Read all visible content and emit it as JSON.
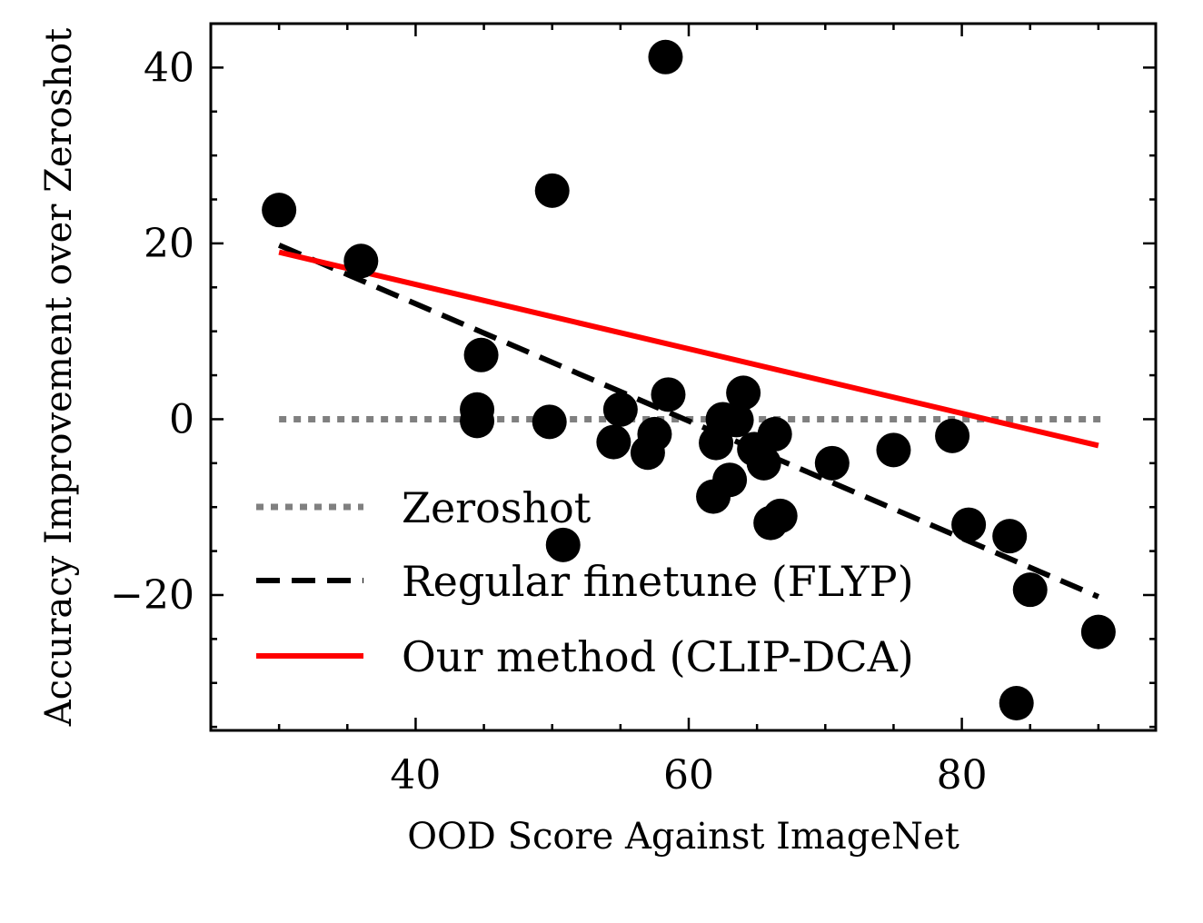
{
  "chart_data": {
    "type": "scatter",
    "xlabel": "OOD Score Against ImageNet",
    "ylabel": "Accuracy Improvement over Zeroshot",
    "xlim": [
      25.0,
      94.2
    ],
    "ylim": [
      -35.4,
      45.0
    ],
    "xticks": [
      40,
      60,
      80
    ],
    "xtick_labels": [
      "40",
      "60",
      "80"
    ],
    "yticks": [
      -20,
      0,
      20,
      40
    ],
    "ytick_labels": [
      "−20",
      "0",
      "20",
      "40"
    ],
    "x_minor_step": 5,
    "y_minor_step": 5,
    "grid": false,
    "legend_position": "lower-left",
    "colors": {
      "points": "#000000",
      "zeroshot": "#808080",
      "regular": "#000000",
      "ours": "#ff0000"
    },
    "points": {
      "x": [
        30.0,
        36.0,
        44.8,
        44.5,
        44.5,
        50.0,
        49.8,
        50.8,
        54.5,
        55.0,
        57.0,
        57.5,
        58.3,
        58.5,
        61.8,
        62.0,
        62.5,
        63.0,
        63.5,
        64.0,
        64.8,
        65.5,
        66.0,
        66.3,
        66.7,
        70.5,
        75.0,
        79.3,
        80.5,
        83.5,
        84.0,
        85.0,
        90.0
      ],
      "y": [
        23.8,
        18.0,
        7.3,
        1.1,
        -0.2,
        26.0,
        -0.3,
        -14.3,
        -2.6,
        1.1,
        -3.8,
        -1.7,
        41.2,
        2.8,
        -8.8,
        -2.7,
        0.0,
        -6.9,
        -0.1,
        3.0,
        -3.4,
        -5.0,
        -11.8,
        -1.7,
        -11.0,
        -5.0,
        -3.5,
        -1.9,
        -12.0,
        -13.3,
        -32.3,
        -19.4,
        -24.2
      ]
    },
    "series": [
      {
        "name": "Zeroshot",
        "style": "dotted",
        "x": [
          30.0,
          90.5
        ],
        "y": [
          0.0,
          0.0
        ]
      },
      {
        "name": "Regular finetune (FLYP)",
        "style": "dashed",
        "x": [
          30.0,
          90.0
        ],
        "y": [
          19.8,
          -20.2
        ]
      },
      {
        "name": "Our method (CLIP-DCA)",
        "style": "solid",
        "x": [
          30.0,
          90.0
        ],
        "y": [
          19.0,
          -3.0
        ]
      }
    ]
  }
}
